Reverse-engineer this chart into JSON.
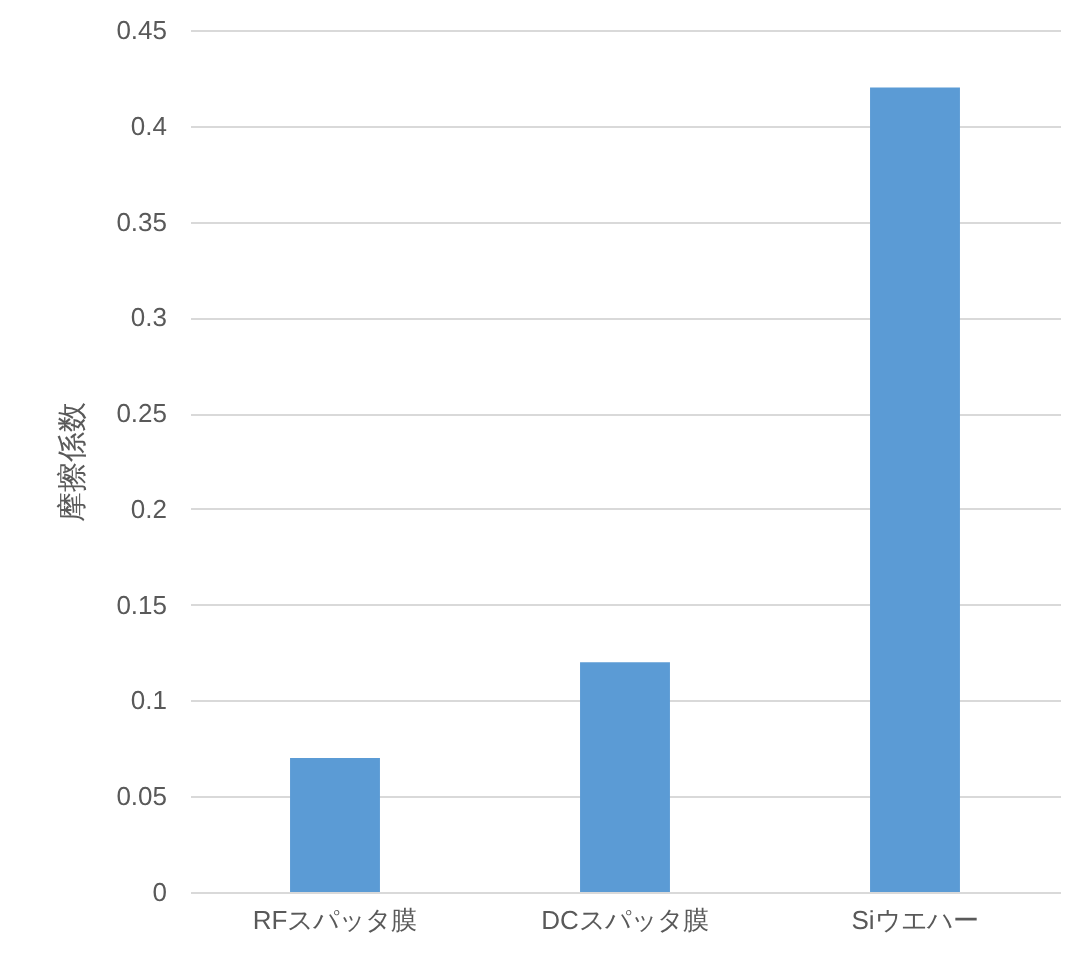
{
  "chart_data": {
    "type": "bar",
    "ylabel": "摩擦係数",
    "categories": [
      "RFスパッタ膜",
      "DCスパッタ膜",
      "Siウエハー"
    ],
    "values": [
      0.07,
      0.12,
      0.42
    ],
    "color": "#5b9bd5",
    "ylim": [
      0,
      0.45
    ],
    "yticks": [
      0,
      0.05,
      0.1,
      0.15,
      0.2,
      0.25,
      0.3,
      0.35,
      0.4,
      0.45
    ],
    "grid": "y"
  }
}
